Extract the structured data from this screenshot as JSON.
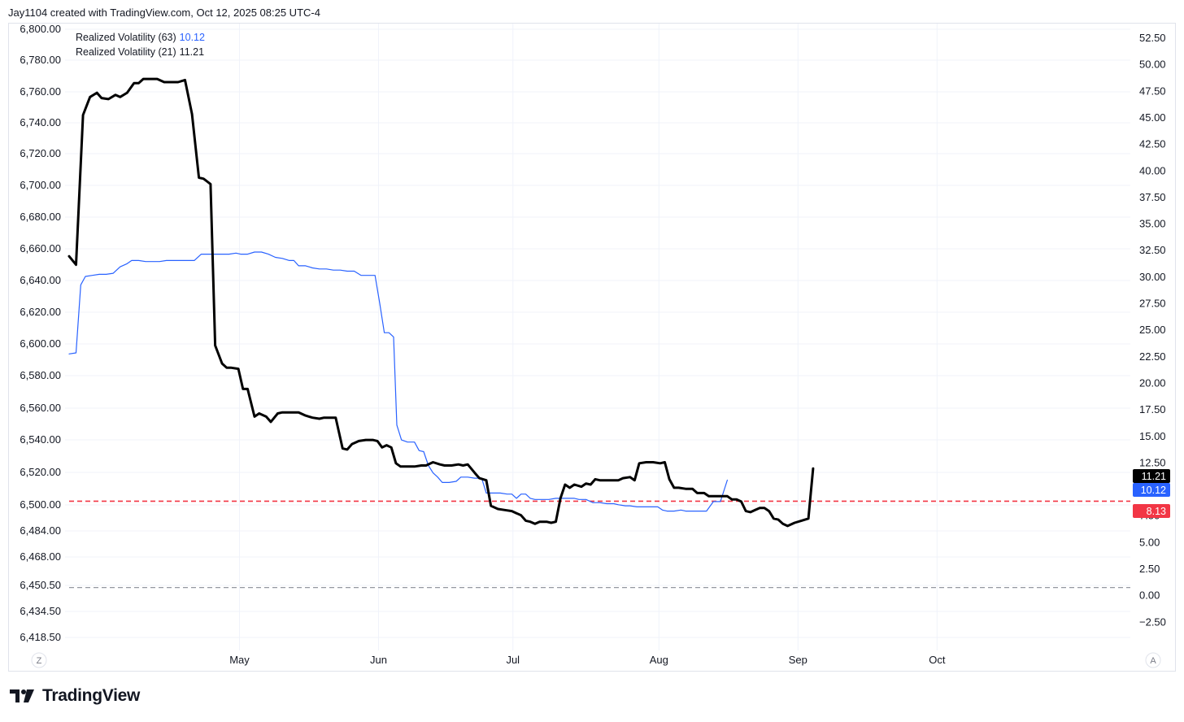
{
  "header": {
    "text": "Jay1104 created with TradingView.com, Oct 12, 2025 08:25 UTC-4"
  },
  "legend": [
    {
      "name": "Realized Volatility (63)",
      "value": "10.12",
      "color": "#2962ff"
    },
    {
      "name": "Realized Volatility (21)",
      "value": "11.21",
      "color": "#000000"
    }
  ],
  "brand": {
    "name": "TradingView"
  },
  "corner_buttons": {
    "left": "Z",
    "right": "A"
  },
  "chart_data": {
    "type": "line",
    "left_axis": {
      "ticks": [
        "6,800.00",
        "6,780.00",
        "6,760.00",
        "6,740.00",
        "6,720.00",
        "6,700.00",
        "6,680.00",
        "6,660.00",
        "6,640.00",
        "6,620.00",
        "6,600.00",
        "6,580.00",
        "6,560.00",
        "6,540.00",
        "6,520.00",
        "6,500.00",
        "6,484.00",
        "6,468.00",
        "6,450.50",
        "6,434.50",
        "6,418.50"
      ]
    },
    "right_axis": {
      "ylim": [
        -2.5,
        52.5
      ],
      "ticks": [
        "52.50",
        "50.00",
        "47.50",
        "45.00",
        "42.50",
        "40.00",
        "37.50",
        "35.00",
        "32.50",
        "30.00",
        "27.50",
        "25.00",
        "22.50",
        "20.00",
        "17.50",
        "15.00",
        "12.50",
        "10.00",
        "7.50",
        "5.00",
        "2.50",
        "0.00",
        "−2.50"
      ]
    },
    "x_axis": {
      "labels": [
        {
          "label": "May",
          "x": 36.75
        },
        {
          "label": "Jun",
          "x": 66.75
        },
        {
          "label": "Jul",
          "x": 95.75
        },
        {
          "label": "Aug",
          "x": 127.25
        },
        {
          "label": "Sep",
          "x": 157.25
        },
        {
          "label": "Oct",
          "x": 187.25
        }
      ]
    },
    "grid": true,
    "reference_lines": [
      {
        "value": 8.13,
        "color": "#f23645",
        "style": "dashed",
        "label": "8.13"
      },
      {
        "value": 0.0,
        "color": "#9598a1",
        "style": "dashed"
      }
    ],
    "last_value_badges": [
      {
        "value": 11.21,
        "label": "11.21",
        "color": "#000000"
      },
      {
        "value": 10.12,
        "label": "10.12",
        "color": "#2962ff"
      }
    ],
    "series": [
      {
        "name": "Realized Volatility (21)",
        "color": "#000000",
        "points": [
          [
            0,
            31.2
          ],
          [
            1.5,
            30.4
          ],
          [
            3,
            44.5
          ],
          [
            4.5,
            46.2
          ],
          [
            6,
            46.6
          ],
          [
            7,
            46.1
          ],
          [
            8.5,
            46.0
          ],
          [
            10,
            46.4
          ],
          [
            11,
            46.2
          ],
          [
            12.5,
            46.6
          ],
          [
            14,
            47.5
          ],
          [
            15,
            47.5
          ],
          [
            16,
            47.9
          ],
          [
            17.5,
            47.9
          ],
          [
            19,
            47.9
          ],
          [
            20.5,
            47.6
          ],
          [
            22,
            47.6
          ],
          [
            23.5,
            47.6
          ],
          [
            25,
            47.8
          ],
          [
            26.5,
            44.6
          ],
          [
            28,
            38.6
          ],
          [
            29,
            38.5
          ],
          [
            30.5,
            38.0
          ],
          [
            31.5,
            22.8
          ],
          [
            33,
            21.1
          ],
          [
            34,
            20.7
          ],
          [
            35,
            20.7
          ],
          [
            36.5,
            20.6
          ],
          [
            37.5,
            18.7
          ],
          [
            38.5,
            18.7
          ],
          [
            40,
            16.1
          ],
          [
            41,
            16.4
          ],
          [
            42.5,
            16.1
          ],
          [
            43.5,
            15.6
          ],
          [
            45,
            16.4
          ],
          [
            46,
            16.5
          ],
          [
            47,
            16.5
          ],
          [
            48.5,
            16.5
          ],
          [
            49.5,
            16.5
          ],
          [
            51,
            16.2
          ],
          [
            52.5,
            16.0
          ],
          [
            54,
            15.9
          ],
          [
            55,
            16.0
          ],
          [
            56.5,
            16.0
          ],
          [
            57.5,
            16.0
          ],
          [
            59,
            13.1
          ],
          [
            60,
            13.0
          ],
          [
            61,
            13.5
          ],
          [
            62.5,
            13.8
          ],
          [
            64,
            13.9
          ],
          [
            65.5,
            13.9
          ],
          [
            66.5,
            13.8
          ],
          [
            67.5,
            13.2
          ],
          [
            68.5,
            13.4
          ],
          [
            69.5,
            13.2
          ],
          [
            70.5,
            11.7
          ],
          [
            71.5,
            11.4
          ],
          [
            73,
            11.4
          ],
          [
            74.5,
            11.4
          ],
          [
            76,
            11.5
          ],
          [
            77,
            11.5
          ],
          [
            78.5,
            11.8
          ],
          [
            80,
            11.6
          ],
          [
            81,
            11.5
          ],
          [
            82.5,
            11.5
          ],
          [
            84,
            11.6
          ],
          [
            85,
            11.5
          ],
          [
            86,
            11.6
          ],
          [
            87.5,
            10.8
          ],
          [
            88.5,
            10.3
          ],
          [
            90,
            10.1
          ],
          [
            91,
            7.7
          ],
          [
            92.5,
            7.4
          ],
          [
            94,
            7.3
          ],
          [
            95.5,
            7.2
          ],
          [
            96.5,
            7.0
          ],
          [
            97.5,
            6.8
          ],
          [
            98.5,
            6.3
          ],
          [
            99.5,
            6.2
          ],
          [
            100.5,
            6.0
          ],
          [
            101.5,
            6.2
          ],
          [
            103,
            6.2
          ],
          [
            104,
            6.1
          ],
          [
            105,
            6.2
          ],
          [
            106,
            8.4
          ],
          [
            107,
            9.7
          ],
          [
            108,
            9.4
          ],
          [
            109,
            9.7
          ],
          [
            110.5,
            9.5
          ],
          [
            111.5,
            9.8
          ],
          [
            112.5,
            9.7
          ],
          [
            113.5,
            10.2
          ],
          [
            114.5,
            10.1
          ],
          [
            116,
            10.1
          ],
          [
            117.5,
            10.1
          ],
          [
            118.5,
            10.1
          ],
          [
            119.5,
            10.3
          ],
          [
            121,
            10.4
          ],
          [
            122,
            10.1
          ],
          [
            123,
            11.7
          ],
          [
            124.5,
            11.8
          ],
          [
            126,
            11.8
          ],
          [
            127.5,
            11.7
          ],
          [
            128.5,
            11.8
          ],
          [
            129.5,
            10.2
          ],
          [
            130.5,
            9.4
          ],
          [
            131.5,
            9.4
          ],
          [
            133,
            9.3
          ],
          [
            134.5,
            9.3
          ],
          [
            135.5,
            8.9
          ],
          [
            137,
            8.9
          ],
          [
            138,
            8.6
          ],
          [
            139,
            8.6
          ],
          [
            140.5,
            8.6
          ],
          [
            142,
            8.6
          ],
          [
            143,
            8.3
          ],
          [
            144,
            8.3
          ],
          [
            145,
            8.1
          ],
          [
            146,
            7.2
          ],
          [
            147,
            7.1
          ],
          [
            148,
            7.3
          ],
          [
            149,
            7.5
          ],
          [
            150,
            7.5
          ],
          [
            151,
            7.2
          ],
          [
            152,
            6.5
          ],
          [
            153,
            6.4
          ],
          [
            154,
            6.0
          ],
          [
            155,
            5.8
          ],
          [
            156.5,
            6.1
          ],
          [
            158,
            6.3
          ],
          [
            159.5,
            6.5
          ],
          [
            160.5,
            11.21
          ]
        ]
      },
      {
        "name": "Realized Volatility (63)",
        "color": "#2962ff",
        "points": [
          [
            0,
            22.0
          ],
          [
            1.5,
            22.1
          ],
          [
            2.5,
            28.5
          ],
          [
            3.5,
            29.3
          ],
          [
            5,
            29.4
          ],
          [
            6.5,
            29.5
          ],
          [
            8,
            29.5
          ],
          [
            9.5,
            29.6
          ],
          [
            11,
            30.2
          ],
          [
            12.5,
            30.5
          ],
          [
            13.5,
            30.8
          ],
          [
            15,
            30.8
          ],
          [
            16.5,
            30.7
          ],
          [
            18,
            30.7
          ],
          [
            19.5,
            30.7
          ],
          [
            21,
            30.8
          ],
          [
            22.5,
            30.8
          ],
          [
            24,
            30.8
          ],
          [
            25.5,
            30.8
          ],
          [
            27,
            30.8
          ],
          [
            28.5,
            31.4
          ],
          [
            30,
            31.4
          ],
          [
            31.5,
            31.4
          ],
          [
            33,
            31.4
          ],
          [
            34.5,
            31.4
          ],
          [
            36,
            31.5
          ],
          [
            37,
            31.4
          ],
          [
            38.5,
            31.4
          ],
          [
            40,
            31.6
          ],
          [
            41.5,
            31.6
          ],
          [
            43,
            31.4
          ],
          [
            44.5,
            31.1
          ],
          [
            46,
            31.0
          ],
          [
            47.5,
            30.8
          ],
          [
            48.5,
            30.8
          ],
          [
            49.5,
            30.3
          ],
          [
            51,
            30.3
          ],
          [
            52.5,
            30.1
          ],
          [
            54,
            30.0
          ],
          [
            55.5,
            30.0
          ],
          [
            57,
            29.9
          ],
          [
            58.5,
            29.9
          ],
          [
            60,
            29.8
          ],
          [
            61.5,
            29.8
          ],
          [
            63,
            29.4
          ],
          [
            64.5,
            29.4
          ],
          [
            66,
            29.4
          ],
          [
            67,
            26.8
          ],
          [
            68,
            24.0
          ],
          [
            69,
            24.0
          ],
          [
            70,
            23.6
          ],
          [
            70.7,
            15.3
          ],
          [
            71.7,
            13.9
          ],
          [
            73,
            13.7
          ],
          [
            74.5,
            13.7
          ],
          [
            75.5,
            12.9
          ],
          [
            76.5,
            12.8
          ],
          [
            77.5,
            11.5
          ],
          [
            78.5,
            10.8
          ],
          [
            79.5,
            10.4
          ],
          [
            80.5,
            9.9
          ],
          [
            82,
            9.9
          ],
          [
            83.5,
            10.0
          ],
          [
            84.5,
            10.4
          ],
          [
            86,
            10.4
          ],
          [
            87.5,
            10.3
          ],
          [
            89,
            10.3
          ],
          [
            90,
            8.9
          ],
          [
            91.5,
            8.9
          ],
          [
            93,
            8.9
          ],
          [
            94.5,
            8.8
          ],
          [
            95.5,
            8.8
          ],
          [
            96.5,
            8.4
          ],
          [
            97.5,
            8.8
          ],
          [
            98.5,
            8.8
          ],
          [
            99.5,
            8.4
          ],
          [
            100.5,
            8.3
          ],
          [
            102,
            8.3
          ],
          [
            103.5,
            8.3
          ],
          [
            105,
            8.4
          ],
          [
            106,
            8.4
          ],
          [
            107.5,
            8.4
          ],
          [
            109,
            8.4
          ],
          [
            110,
            8.3
          ],
          [
            111.5,
            8.3
          ],
          [
            113,
            8.0
          ],
          [
            114.5,
            8.0
          ],
          [
            116,
            7.9
          ],
          [
            117.5,
            7.9
          ],
          [
            118.5,
            7.8
          ],
          [
            120,
            7.7
          ],
          [
            121,
            7.7
          ],
          [
            122.5,
            7.6
          ],
          [
            124,
            7.6
          ],
          [
            125.5,
            7.6
          ],
          [
            127,
            7.6
          ],
          [
            128,
            7.3
          ],
          [
            129,
            7.2
          ],
          [
            130.5,
            7.2
          ],
          [
            132,
            7.3
          ],
          [
            133,
            7.2
          ],
          [
            134.5,
            7.2
          ],
          [
            136,
            7.2
          ],
          [
            137.5,
            7.2
          ],
          [
            139,
            8.1
          ],
          [
            140.5,
            8.1
          ],
          [
            142,
            10.12
          ]
        ]
      }
    ]
  }
}
